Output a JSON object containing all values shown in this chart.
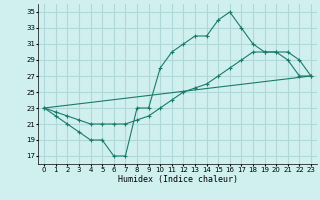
{
  "xlabel": "Humidex (Indice chaleur)",
  "ylabel": "",
  "bg_color": "#d0f0f0",
  "grid_color": "#b0d8d8",
  "line_color": "#1a7a6a",
  "xlim": [
    -0.5,
    23.5
  ],
  "ylim": [
    16,
    36
  ],
  "yticks": [
    17,
    19,
    21,
    23,
    25,
    27,
    29,
    31,
    33,
    35
  ],
  "xticks": [
    0,
    1,
    2,
    3,
    4,
    5,
    6,
    7,
    8,
    9,
    10,
    11,
    12,
    13,
    14,
    15,
    16,
    17,
    18,
    19,
    20,
    21,
    22,
    23
  ],
  "curve1_x": [
    0,
    1,
    2,
    3,
    4,
    5,
    6,
    7,
    8,
    9,
    10,
    11,
    12,
    13,
    14,
    15,
    16,
    17,
    18,
    19,
    20,
    21,
    22,
    23
  ],
  "curve1_y": [
    23,
    22,
    21,
    20,
    19,
    19,
    17,
    17,
    23,
    23,
    28,
    30,
    31,
    32,
    32,
    34,
    35,
    33,
    31,
    30,
    30,
    29,
    27,
    27
  ],
  "curve2_x": [
    0,
    1,
    2,
    3,
    4,
    5,
    6,
    7,
    8,
    9,
    10,
    11,
    12,
    13,
    14,
    15,
    16,
    17,
    18,
    19,
    20,
    21,
    22,
    23
  ],
  "curve2_y": [
    23,
    22.5,
    22,
    21.5,
    21,
    21,
    21,
    21,
    21.5,
    22,
    23,
    24,
    25,
    25.5,
    26,
    27,
    28,
    29,
    30,
    30,
    30,
    30,
    29,
    27
  ],
  "curve3_x": [
    0,
    23
  ],
  "curve3_y": [
    23,
    27
  ]
}
